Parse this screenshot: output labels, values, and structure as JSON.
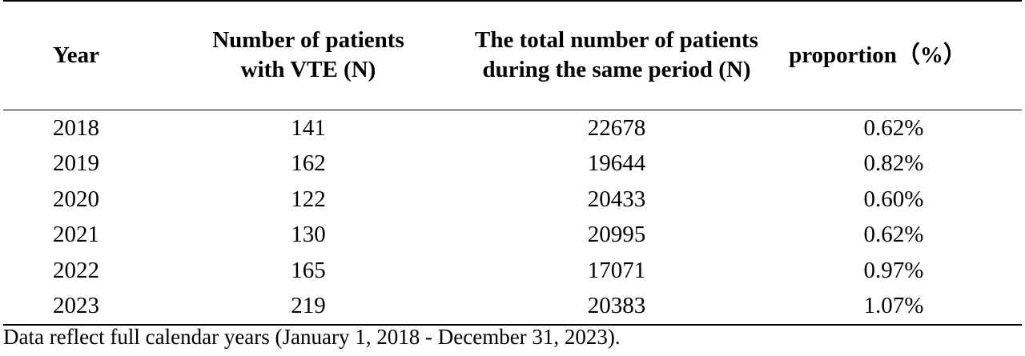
{
  "table": {
    "headers": [
      "Year",
      "Number of patients with VTE (N)",
      "The total number of patients during the same period (N)",
      "proportion（%）"
    ],
    "rows": [
      [
        "2018",
        "141",
        "22678",
        "0.62%"
      ],
      [
        "2019",
        "162",
        "19644",
        "0.82%"
      ],
      [
        "2020",
        "122",
        "20433",
        "0.60%"
      ],
      [
        "2021",
        "130",
        "20995",
        "0.62%"
      ],
      [
        "2022",
        "165",
        "17071",
        "0.97%"
      ],
      [
        "2023",
        "219",
        "20383",
        "1.07%"
      ]
    ]
  },
  "footnote": "Data reflect full calendar years (January 1, 2018 - December 31, 2023)."
}
